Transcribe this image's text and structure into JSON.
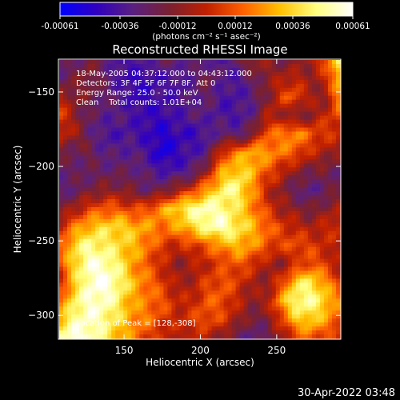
{
  "colorbar": {
    "ticks": [
      "-0.00061",
      "-0.00036",
      "-0.00012",
      "0.00012",
      "0.00036",
      "0.00061"
    ],
    "tick_values": [
      -0.00061,
      -0.00036,
      -0.00012,
      0.00012,
      0.00036,
      0.00061
    ],
    "units": "(photons cm⁻² s⁻¹ asec⁻²)",
    "colors": [
      "#0000ff",
      "#3000c0",
      "#5a2080",
      "#7a2030",
      "#c02000",
      "#ff6000",
      "#ffc000",
      "#ffff80",
      "#ffffff"
    ]
  },
  "annotations": {
    "line1": "18-May-2005 04:37:12.000 to 04:43:12.000",
    "line2": "Detectors: 3F 4F 5F 6F 7F 8F, Att 0",
    "line3": "Energy Range: 25.0 - 50.0 keV",
    "line4": "Clean    Total counts: 1.01E+04",
    "peak": "Location of Peak = [128,-308]"
  },
  "timestamp": "30-Apr-2022 03:48",
  "chart_data": {
    "type": "heatmap",
    "title": "Reconstructed RHESSI Image",
    "xlabel": "Heliocentric X (arcsec)",
    "ylabel": "Heliocentric Y (arcsec)",
    "xlim": [
      107,
      292
    ],
    "ylim": [
      -316,
      -128
    ],
    "xticks": [
      150,
      200,
      250
    ],
    "yticks": [
      -150,
      -200,
      -250,
      -300
    ],
    "peak_location": [
      128,
      -308
    ],
    "value_range": [
      -0.00061,
      0.00061
    ],
    "intensity_levels": [
      [
        0.25,
        0.3,
        0.35,
        0.3,
        0.2,
        0.2,
        0.25,
        0.3,
        0.3,
        0.25,
        0.25,
        0.2,
        0.3,
        0.45,
        0.4,
        0.35,
        0.35,
        0.45,
        0.6,
        0.85
      ],
      [
        0.3,
        0.35,
        0.4,
        0.3,
        0.2,
        0.15,
        0.15,
        0.2,
        0.2,
        0.25,
        0.35,
        0.25,
        0.2,
        0.3,
        0.4,
        0.45,
        0.5,
        0.4,
        0.5,
        0.8
      ],
      [
        0.45,
        0.4,
        0.35,
        0.3,
        0.25,
        0.15,
        0.15,
        0.2,
        0.2,
        0.25,
        0.3,
        0.2,
        0.2,
        0.25,
        0.35,
        0.55,
        0.6,
        0.45,
        0.4,
        0.7
      ],
      [
        0.6,
        0.4,
        0.3,
        0.25,
        0.25,
        0.2,
        0.15,
        0.15,
        0.2,
        0.25,
        0.25,
        0.2,
        0.2,
        0.25,
        0.45,
        0.45,
        0.35,
        0.4,
        0.5,
        0.6
      ],
      [
        0.5,
        0.45,
        0.3,
        0.2,
        0.2,
        0.2,
        0.15,
        0.1,
        0.15,
        0.15,
        0.2,
        0.3,
        0.25,
        0.35,
        0.6,
        0.65,
        0.7,
        0.6,
        0.55,
        0.5
      ],
      [
        0.35,
        0.3,
        0.35,
        0.25,
        0.25,
        0.25,
        0.2,
        0.05,
        0.15,
        0.2,
        0.25,
        0.55,
        0.65,
        0.75,
        0.7,
        0.65,
        0.6,
        0.5,
        0.45,
        0.4
      ],
      [
        0.3,
        0.3,
        0.3,
        0.3,
        0.3,
        0.3,
        0.25,
        0.2,
        0.2,
        0.25,
        0.45,
        0.7,
        0.8,
        0.75,
        0.6,
        0.5,
        0.4,
        0.35,
        0.35,
        0.3
      ],
      [
        0.25,
        0.3,
        0.35,
        0.4,
        0.4,
        0.35,
        0.3,
        0.35,
        0.45,
        0.55,
        0.7,
        0.85,
        0.9,
        0.7,
        0.5,
        0.4,
        0.3,
        0.25,
        0.3,
        0.35
      ],
      [
        0.35,
        0.45,
        0.55,
        0.6,
        0.6,
        0.55,
        0.6,
        0.7,
        0.8,
        0.9,
        0.95,
        0.9,
        0.8,
        0.7,
        0.55,
        0.45,
        0.4,
        0.35,
        0.4,
        0.45
      ],
      [
        0.5,
        0.65,
        0.75,
        0.8,
        0.8,
        0.75,
        0.7,
        0.65,
        0.7,
        0.8,
        0.9,
        0.95,
        0.85,
        0.75,
        0.65,
        0.55,
        0.5,
        0.45,
        0.5,
        0.55
      ],
      [
        0.6,
        0.8,
        0.9,
        0.85,
        0.8,
        0.75,
        0.65,
        0.55,
        0.5,
        0.55,
        0.6,
        0.7,
        0.75,
        0.7,
        0.6,
        0.55,
        0.6,
        0.55,
        0.5,
        0.45
      ],
      [
        0.55,
        0.8,
        0.95,
        0.95,
        0.85,
        0.7,
        0.6,
        0.5,
        0.4,
        0.45,
        0.5,
        0.55,
        0.6,
        0.55,
        0.45,
        0.4,
        0.5,
        0.6,
        0.55,
        0.45
      ],
      [
        0.5,
        0.75,
        0.95,
        1.0,
        0.9,
        0.75,
        0.65,
        0.55,
        0.45,
        0.45,
        0.55,
        0.6,
        0.55,
        0.45,
        0.4,
        0.55,
        0.8,
        0.85,
        0.7,
        0.55
      ],
      [
        0.6,
        0.85,
        0.95,
        0.95,
        0.85,
        0.7,
        0.65,
        0.6,
        0.5,
        0.5,
        0.6,
        0.6,
        0.5,
        0.4,
        0.45,
        0.7,
        0.9,
        0.9,
        0.8,
        0.65
      ],
      [
        0.75,
        0.9,
        0.95,
        0.9,
        0.8,
        0.7,
        0.65,
        0.55,
        0.5,
        0.55,
        0.6,
        0.55,
        0.45,
        0.35,
        0.35,
        0.55,
        0.75,
        0.8,
        0.7,
        0.6
      ],
      [
        0.9,
        1.0,
        0.95,
        0.85,
        0.75,
        0.65,
        0.55,
        0.5,
        0.45,
        0.5,
        0.45,
        0.4,
        0.3,
        0.25,
        0.3,
        0.4,
        0.55,
        0.6,
        0.55,
        0.5
      ]
    ]
  }
}
